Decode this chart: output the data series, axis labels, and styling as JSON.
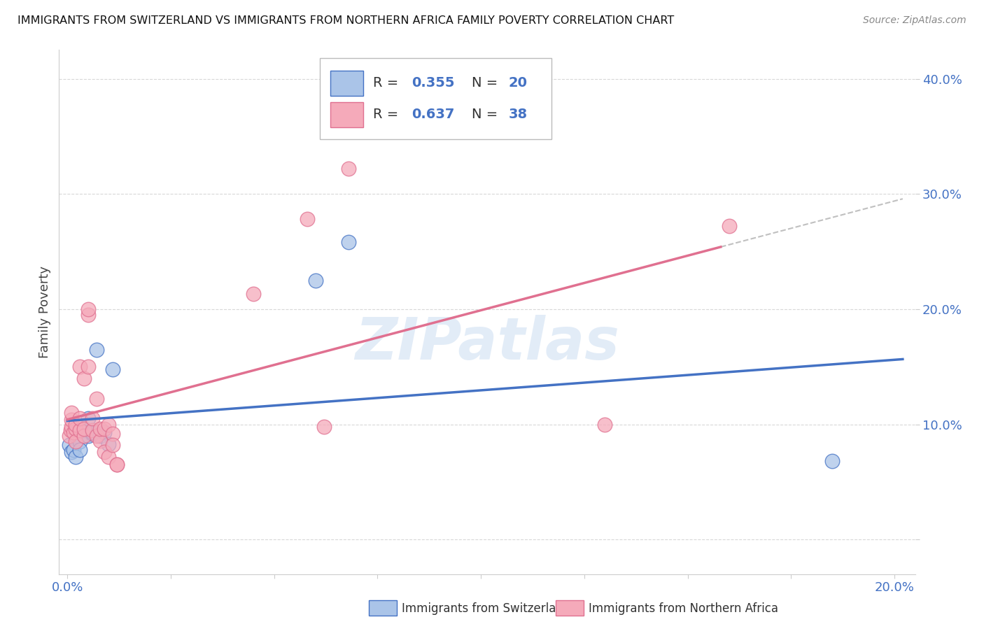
{
  "title": "IMMIGRANTS FROM SWITZERLAND VS IMMIGRANTS FROM NORTHERN AFRICA FAMILY POVERTY CORRELATION CHART",
  "source": "Source: ZipAtlas.com",
  "ylabel": "Family Poverty",
  "y_ticks": [
    0.0,
    0.1,
    0.2,
    0.3,
    0.4
  ],
  "y_tick_labels": [
    "",
    "10.0%",
    "20.0%",
    "30.0%",
    "40.0%"
  ],
  "xlim": [
    -0.002,
    0.205
  ],
  "ylim": [
    -0.03,
    0.425
  ],
  "legend_r1": "R = 0.355",
  "legend_n1": "N = 20",
  "legend_r2": "R = 0.637",
  "legend_n2": "N = 38",
  "color_swiss": "#aac4e8",
  "color_nafrica": "#f5aaba",
  "line_color_swiss": "#4472c4",
  "line_color_nafrica": "#e07090",
  "scatter_swiss_x": [
    0.0005,
    0.001,
    0.0015,
    0.002,
    0.002,
    0.003,
    0.003,
    0.004,
    0.005,
    0.005,
    0.006,
    0.006,
    0.007,
    0.008,
    0.009,
    0.01,
    0.011,
    0.06,
    0.068,
    0.185
  ],
  "scatter_swiss_y": [
    0.082,
    0.076,
    0.078,
    0.09,
    0.072,
    0.085,
    0.078,
    0.095,
    0.105,
    0.09,
    0.092,
    0.093,
    0.165,
    0.09,
    0.093,
    0.083,
    0.148,
    0.225,
    0.258,
    0.068
  ],
  "scatter_nafrica_x": [
    0.0005,
    0.0008,
    0.001,
    0.001,
    0.001,
    0.0015,
    0.002,
    0.002,
    0.002,
    0.003,
    0.003,
    0.003,
    0.004,
    0.004,
    0.004,
    0.005,
    0.005,
    0.005,
    0.006,
    0.006,
    0.007,
    0.007,
    0.008,
    0.008,
    0.009,
    0.009,
    0.01,
    0.01,
    0.011,
    0.011,
    0.012,
    0.012,
    0.045,
    0.058,
    0.062,
    0.068,
    0.13,
    0.16
  ],
  "scatter_nafrica_y": [
    0.09,
    0.095,
    0.098,
    0.104,
    0.11,
    0.093,
    0.096,
    0.1,
    0.085,
    0.095,
    0.105,
    0.15,
    0.09,
    0.096,
    0.14,
    0.15,
    0.195,
    0.2,
    0.095,
    0.105,
    0.09,
    0.122,
    0.086,
    0.096,
    0.096,
    0.076,
    0.1,
    0.072,
    0.092,
    0.082,
    0.065,
    0.065,
    0.213,
    0.278,
    0.098,
    0.322,
    0.1,
    0.272
  ],
  "watermark": "ZIPatlas",
  "background_color": "#ffffff",
  "grid_color": "#d8d8d8",
  "text_blue": "#4472c4",
  "text_dark": "#222222",
  "legend_r_color": "#333333",
  "legend_num_color": "#4472c4"
}
